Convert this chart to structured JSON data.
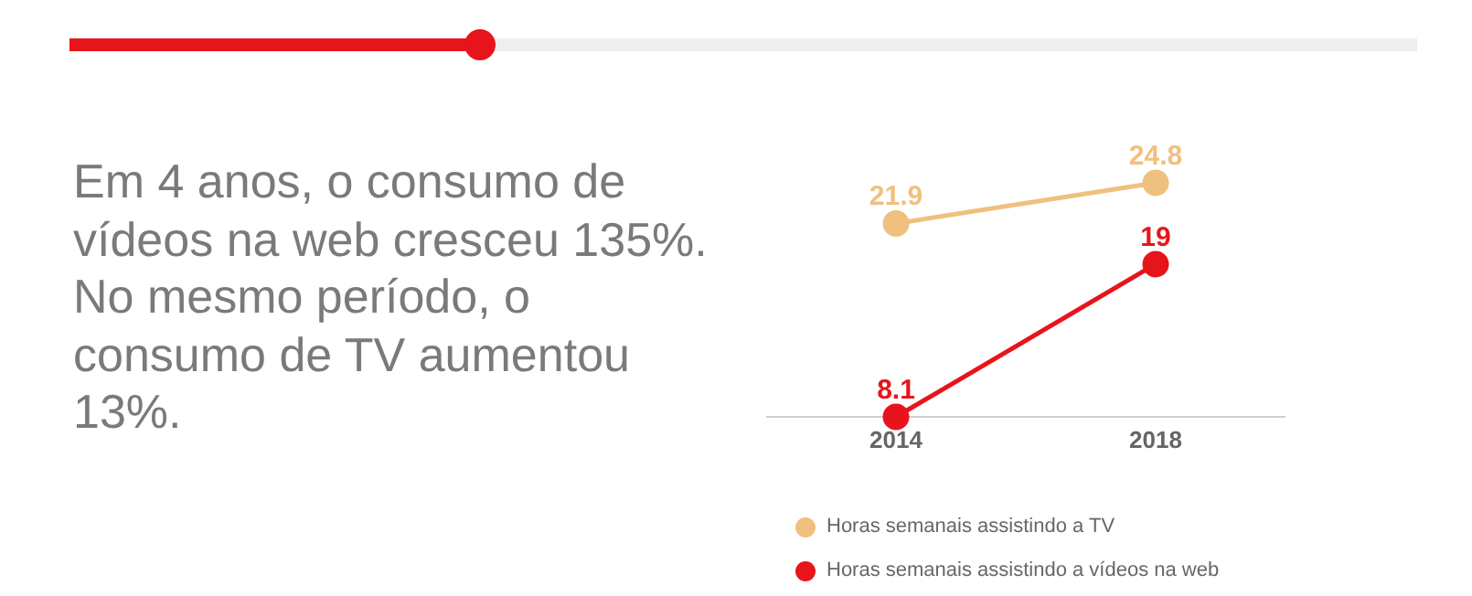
{
  "chart_data": {
    "type": "line",
    "title": "Em 4 anos, o consumo de vídeos na web cresceu 135%. No mesmo período, o consumo de TV aumentou 13%.",
    "categories": [
      "2014",
      "2018"
    ],
    "series": [
      {
        "name": "Horas semanais assistindo a TV",
        "color": "#f0c07e",
        "values": [
          21.9,
          24.8
        ]
      },
      {
        "name": "Horas semanais assistindo a vídeos na web",
        "color": "#e8141b",
        "values": [
          8.1,
          19
        ]
      }
    ],
    "data_labels": true,
    "marker": "circle",
    "grid": false,
    "legend": "bottom left",
    "tick_labels": "x"
  }
}
